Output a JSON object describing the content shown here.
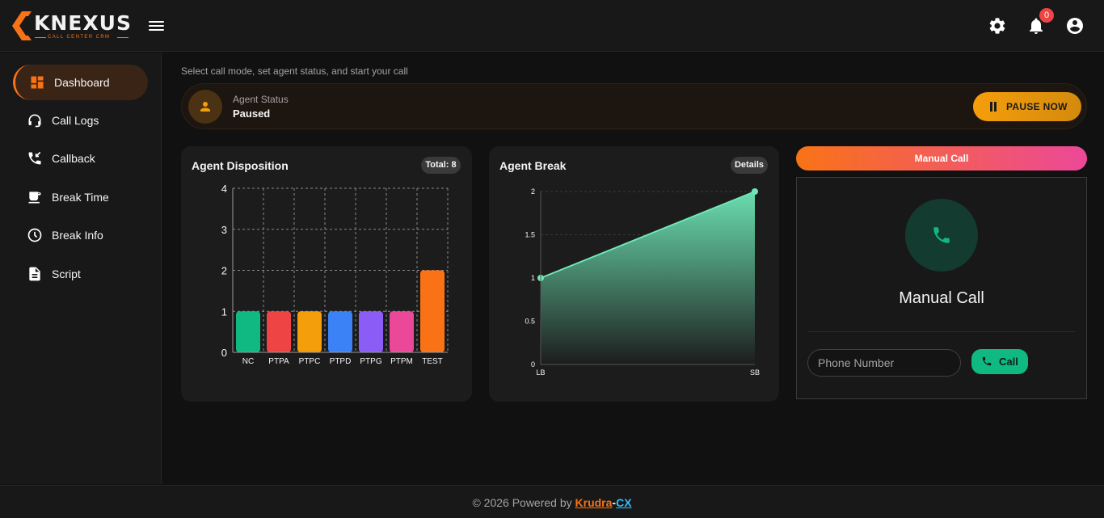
{
  "brand": {
    "name": "KNEXUS",
    "tagline": "CALL CENTER CRM"
  },
  "header": {
    "notification_count": "0"
  },
  "sidebar": {
    "items": [
      {
        "label": "Dashboard",
        "icon": "dashboard-icon",
        "active": true
      },
      {
        "label": "Call Logs",
        "icon": "headset-icon"
      },
      {
        "label": "Callback",
        "icon": "phone-callback-icon"
      },
      {
        "label": "Break Time",
        "icon": "coffee-icon"
      },
      {
        "label": "Break Info",
        "icon": "clock-icon"
      },
      {
        "label": "Script",
        "icon": "document-icon"
      }
    ]
  },
  "main": {
    "hint": "Select call mode, set agent status, and start your call",
    "agent_status": {
      "title": "Agent Status",
      "value": "Paused",
      "button_label": "PAUSE NOW"
    }
  },
  "disposition": {
    "title": "Agent Disposition",
    "badge": "Total: 8"
  },
  "break_card": {
    "title": "Agent Break",
    "badge": "Details"
  },
  "manual_call": {
    "tab_label": "Manual Call",
    "title": "Manual Call",
    "phone_placeholder": "Phone Number",
    "call_label": "Call"
  },
  "footer": {
    "text": "© 2026 Powered by ",
    "brand_a": "Krudra",
    "brand_sep": "-",
    "brand_b": "CX"
  },
  "colors": {
    "accent": "#f97316",
    "success": "#10b981",
    "area": "#6ee7b7"
  },
  "chart_data": [
    {
      "type": "bar",
      "title": "Agent Disposition",
      "categories": [
        "NC",
        "PTPA",
        "PTPC",
        "PTPD",
        "PTPG",
        "PTPM",
        "TEST"
      ],
      "values": [
        1,
        1,
        1,
        1,
        1,
        1,
        2
      ],
      "colors": [
        "#10b981",
        "#ef4444",
        "#f59e0b",
        "#3b82f6",
        "#8b5cf6",
        "#ec4899",
        "#f97316"
      ],
      "ylim": [
        0,
        4
      ],
      "yticks": [
        "0",
        "1",
        "2",
        "3",
        "4"
      ],
      "grid": true
    },
    {
      "type": "area",
      "title": "Agent Break",
      "x": [
        "LB",
        "SB"
      ],
      "values": [
        1,
        2
      ],
      "ylim": [
        0,
        2
      ],
      "yticks": [
        "0",
        "0.5",
        "1",
        "1.5",
        "2"
      ],
      "grid": true
    }
  ]
}
